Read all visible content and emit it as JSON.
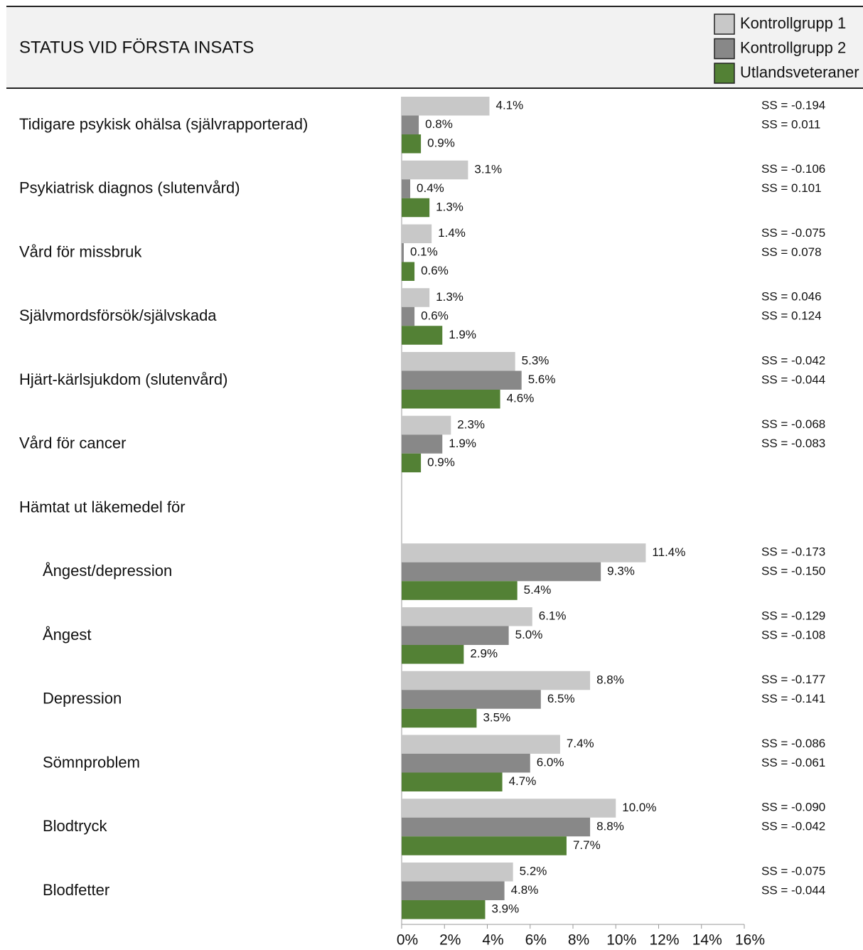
{
  "chart_data": {
    "type": "hbar",
    "title": "STATUS VID FÖRSTA INSATS",
    "categories": [
      "Tidigare psykisk ohälsa (självrapporterad)",
      "Psykiatrisk diagnos (slutenvård)",
      "Vård för missbruk",
      "Självmordsförsök/självskada",
      "Hjärt-kärlsjukdom (slutenvård)",
      "Vård för cancer",
      "Hämtat ut läkemedel för",
      "Ångest/depression",
      "Ångest",
      "Depression",
      "Sömnproblem",
      "Blodtryck",
      "Blodfetter"
    ],
    "series": [
      {
        "name": "Kontrollgrupp 1",
        "color": "#c8c8c8",
        "values": [
          4.1,
          3.1,
          1.4,
          1.3,
          5.3,
          2.3,
          null,
          11.4,
          6.1,
          8.8,
          7.4,
          10.0,
          5.2
        ],
        "value_labels": [
          "4.1%",
          "3.1%",
          "1.4%",
          "1.3%",
          "5.3%",
          "2.3%",
          null,
          "11.4%",
          "6.1%",
          "8.8%",
          "7.4%",
          "10.0%",
          "5.2%"
        ]
      },
      {
        "name": "Kontrollgrupp 2",
        "color": "#888888",
        "values": [
          0.8,
          0.4,
          0.1,
          0.6,
          5.6,
          1.9,
          null,
          9.3,
          5.0,
          6.5,
          6.0,
          8.8,
          4.8
        ],
        "value_labels": [
          "0.8%",
          "0.4%",
          "0.1%",
          "0.6%",
          "5.6%",
          "1.9%",
          null,
          "9.3%",
          "5.0%",
          "6.5%",
          "6.0%",
          "8.8%",
          "4.8%"
        ]
      },
      {
        "name": "Utlandsveteraner",
        "color": "#538135",
        "values": [
          0.9,
          1.3,
          0.6,
          1.9,
          4.6,
          0.9,
          null,
          5.4,
          2.9,
          3.5,
          4.7,
          7.7,
          3.9
        ],
        "value_labels": [
          "0.9%",
          "1.3%",
          "0.6%",
          "1.9%",
          "4.6%",
          "0.9%",
          null,
          "5.4%",
          "2.9%",
          "3.5%",
          "4.7%",
          "7.7%",
          "3.9%"
        ]
      }
    ],
    "annotations": [
      [
        "SS = -0.194",
        "SS = 0.011"
      ],
      [
        "SS = -0.106",
        "SS = 0.101"
      ],
      [
        "SS = -0.075",
        "SS = 0.078"
      ],
      [
        "SS = 0.046",
        "SS = 0.124"
      ],
      [
        "SS = -0.042",
        "SS = -0.044"
      ],
      [
        "SS = -0.068",
        "SS = -0.083"
      ],
      null,
      [
        "SS = -0.173",
        "SS = -0.150"
      ],
      [
        "SS = -0.129",
        "SS = -0.108"
      ],
      [
        "SS = -0.177",
        "SS = -0.141"
      ],
      [
        "SS = -0.086",
        "SS = -0.061"
      ],
      [
        "SS = -0.090",
        "SS = -0.042"
      ],
      [
        "SS = -0.075",
        "SS = -0.044"
      ]
    ],
    "xlim": [
      0,
      16
    ],
    "xticks": [
      {
        "value": 0,
        "label": "0%"
      },
      {
        "value": 2,
        "label": "2%"
      },
      {
        "value": 4,
        "label": "4%"
      },
      {
        "value": 6,
        "label": "6%"
      },
      {
        "value": 8,
        "label": "8%"
      },
      {
        "value": 10,
        "label": "10%"
      },
      {
        "value": 12,
        "label": "12%"
      },
      {
        "value": 14,
        "label": "14%"
      },
      {
        "value": 16,
        "label": "16%"
      }
    ],
    "legend": "top-right"
  }
}
